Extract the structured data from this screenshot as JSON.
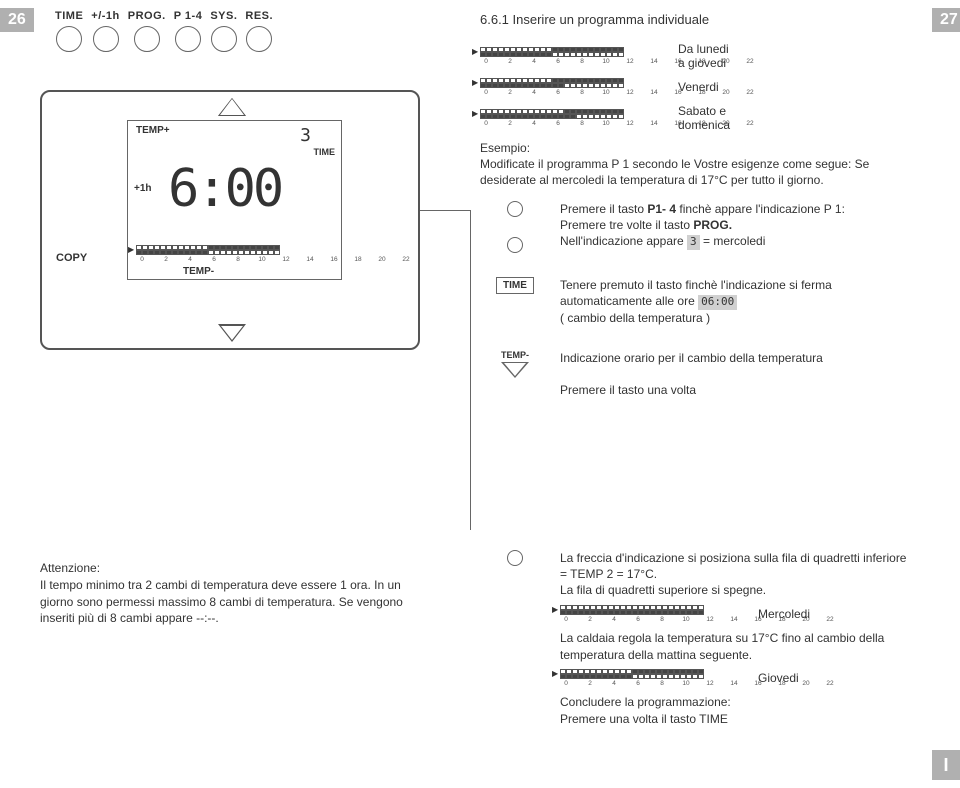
{
  "page_left": "26",
  "page_right": "27",
  "side_tab": "I",
  "top_buttons": [
    {
      "label": "TIME"
    },
    {
      "label": "+/-1h"
    },
    {
      "label": "PROG."
    },
    {
      "label": "P 1-4"
    },
    {
      "label": "SYS."
    },
    {
      "label": "RES."
    }
  ],
  "section_title": "6.6.1 Inserire un programma individuale",
  "device": {
    "temp_plus": "TEMP+",
    "day": "3",
    "time_label": "TIME",
    "plus1h": "+1h",
    "clock": "6:00",
    "temp_minus": "TEMP-",
    "copy": "COPY"
  },
  "scale_numbers": [
    "0",
    "",
    "2",
    "",
    "4",
    "",
    "6",
    "",
    "8",
    "",
    "10",
    "",
    "12",
    "",
    "14",
    "",
    "16",
    "",
    "18",
    "",
    "20",
    "",
    "22",
    ""
  ],
  "scales": {
    "lunedi": {
      "top_fill": [
        0,
        0,
        0,
        0,
        0,
        0,
        0,
        0,
        0,
        0,
        0,
        0,
        1,
        1,
        1,
        1,
        1,
        1,
        1,
        1,
        1,
        1,
        1,
        1
      ],
      "bot_fill": [
        1,
        1,
        1,
        1,
        1,
        1,
        1,
        1,
        1,
        1,
        1,
        1,
        0,
        0,
        0,
        0,
        0,
        0,
        0,
        0,
        0,
        0,
        0,
        0
      ]
    },
    "venerdi": {
      "top_fill": [
        0,
        0,
        0,
        0,
        0,
        0,
        0,
        0,
        0,
        0,
        0,
        0,
        1,
        1,
        1,
        1,
        1,
        1,
        1,
        1,
        1,
        1,
        1,
        1
      ],
      "bot_fill": [
        1,
        1,
        1,
        1,
        1,
        1,
        1,
        1,
        1,
        1,
        1,
        1,
        1,
        1,
        0,
        0,
        0,
        0,
        0,
        0,
        0,
        0,
        0,
        0
      ]
    },
    "sabato": {
      "top_fill": [
        0,
        0,
        0,
        0,
        0,
        0,
        0,
        0,
        0,
        0,
        0,
        0,
        0,
        0,
        1,
        1,
        1,
        1,
        1,
        1,
        1,
        1,
        1,
        1
      ],
      "bot_fill": [
        1,
        1,
        1,
        1,
        1,
        1,
        1,
        1,
        1,
        1,
        1,
        1,
        1,
        1,
        1,
        1,
        0,
        0,
        0,
        0,
        0,
        0,
        0,
        0
      ]
    },
    "device": {
      "top_fill": [
        0,
        0,
        0,
        0,
        0,
        0,
        0,
        0,
        0,
        0,
        0,
        0,
        1,
        1,
        1,
        1,
        1,
        1,
        1,
        1,
        1,
        1,
        1,
        1
      ],
      "bot_fill": [
        1,
        1,
        1,
        1,
        1,
        1,
        1,
        1,
        1,
        1,
        1,
        1,
        0,
        0,
        0,
        0,
        0,
        0,
        0,
        0,
        0,
        0,
        0,
        0
      ]
    },
    "mercoledi": {
      "top_fill": [
        0,
        0,
        0,
        0,
        0,
        0,
        0,
        0,
        0,
        0,
        0,
        0,
        0,
        0,
        0,
        0,
        0,
        0,
        0,
        0,
        0,
        0,
        0,
        0
      ],
      "bot_fill": [
        1,
        1,
        1,
        1,
        1,
        1,
        1,
        1,
        1,
        1,
        1,
        1,
        1,
        1,
        1,
        1,
        1,
        1,
        1,
        1,
        1,
        1,
        1,
        1
      ]
    },
    "giovedi": {
      "top_fill": [
        0,
        0,
        0,
        0,
        0,
        0,
        0,
        0,
        0,
        0,
        0,
        0,
        1,
        1,
        1,
        1,
        1,
        1,
        1,
        1,
        1,
        1,
        1,
        1
      ],
      "bot_fill": [
        1,
        1,
        1,
        1,
        1,
        1,
        1,
        1,
        1,
        1,
        1,
        1,
        0,
        0,
        0,
        0,
        0,
        0,
        0,
        0,
        0,
        0,
        0,
        0
      ]
    }
  },
  "scale_labels": {
    "lunedi": "Da lunedi\na giovedi",
    "venerdi": "Venerdi",
    "sabato": "Sabato e\ndomenica",
    "mercoledi": "Mercoledi",
    "giovedi": "Giovedi"
  },
  "esempio": {
    "heading": "Esempio:",
    "text": "Modificate il programma P 1 secondo le Vostre esigenze come segue: Se desiderate al mercoledi la temperatura di 17°C per tutto il giorno."
  },
  "step1": {
    "line1_a": "Premere il tasto ",
    "line1_b": "P1- 4",
    "line1_c": " finchè appare l'indicazione P 1:",
    "line2_a": "Premere tre volte il tasto ",
    "line2_b": "PROG.",
    "line3_a": "Nell'indicazione appare ",
    "line3_glyph": "3",
    "line3_b": " = mercoledi"
  },
  "step_time": {
    "label": "TIME",
    "text_a": "Tenere premuto il tasto finchè l'indicazione si ferma automaticamente alle ore ",
    "glyph": "06:00",
    "text_b": "( cambio della temperatura )"
  },
  "step_temp": {
    "label": "TEMP-",
    "line1": "Indicazione orario per il cambio della temperatura",
    "line2": "Premere il tasto una volta"
  },
  "attention": {
    "heading": "Attenzione:",
    "text": "Il tempo minimo tra 2 cambi di temperatura deve essere 1 ora. In un giorno sono permessi massimo 8 cambi di temperatura. Se vengono inseriti più di 8 cambi appare --:--."
  },
  "lower_right": {
    "p1": "La freccia d'indicazione si posiziona sulla fila di quadretti inferiore = TEMP 2 = 17°C.\nLa fila di quadretti superiore si spegne.",
    "p2": "La caldaia regola la temperatura su 17°C fino al cambio della temperatura della mattina seguente.",
    "p3": "Concludere la programmazione:\nPremere una volta il tasto TIME"
  },
  "colors": {
    "gray_tab": "#b0b0b0",
    "border": "#555555",
    "fill_square": "#444444"
  }
}
